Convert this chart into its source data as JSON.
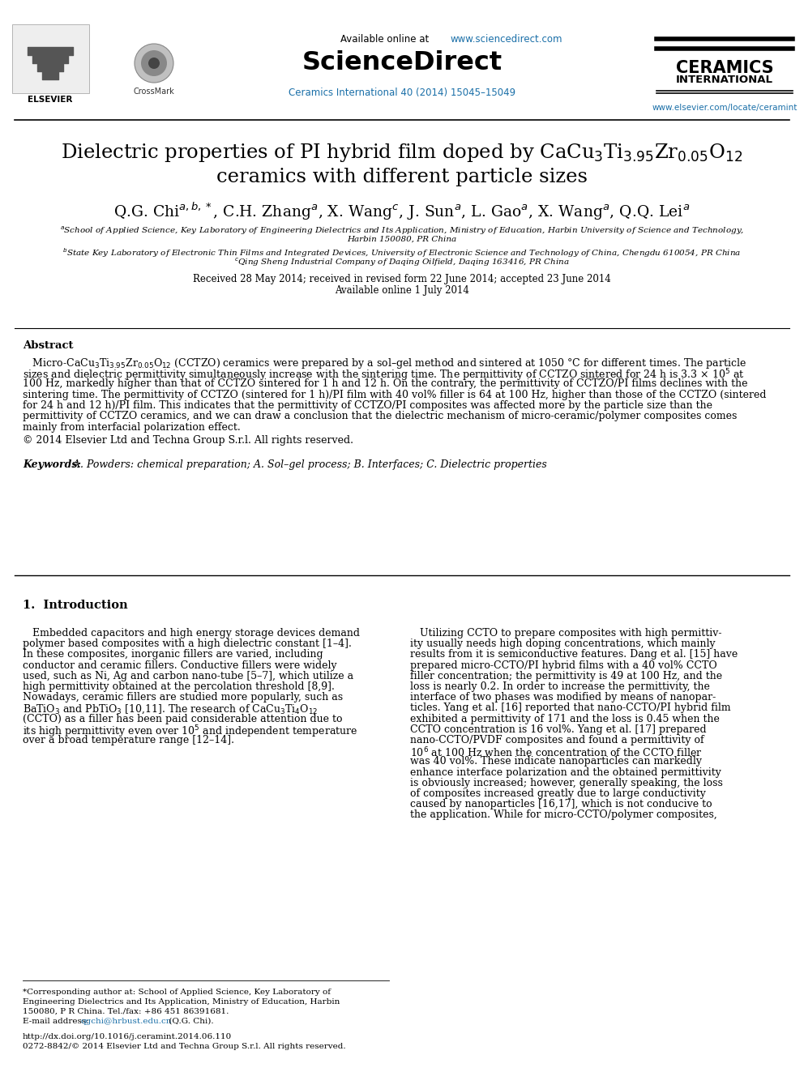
{
  "page_bg": "#ffffff",
  "header_available": "Available online at ",
  "header_url_sd": "www.sciencedirect.com",
  "header_sd_bold": "ScienceDirect",
  "header_journal": "Ceramics International 40 (2014) 15045–15049",
  "header_ceramics": "CERAMICS",
  "header_intl": "INTERNATIONAL",
  "header_elsevier": "ELSEVIER",
  "header_crossmark": "CrossMark",
  "header_url_els": "www.elsevier.com/locate/ceramint",
  "title_line1": "Dielectric properties of PI hybrid film doped by CaCu$_3$Ti$_{3.95}$Zr$_{0.05}$O$_{12}$",
  "title_line2": "ceramics with different particle sizes",
  "authors_text": "Q.G. Chi$^{a,b,*}$, C.H. Zhang$^{a}$, X. Wang$^{c}$, J. Sun$^{a}$, L. Gao$^{a}$, X. Wang$^{a}$, Q.Q. Lei$^{a}$",
  "affil_a_line1": "$^{a}$School of Applied Science, Key Laboratory of Engineering Dielectrics and Its Application, Ministry of Education, Harbin University of Science and Technology,",
  "affil_a_line2": "Harbin 150080, PR China",
  "affil_b": "$^{b}$State Key Laboratory of Electronic Thin Films and Integrated Devices, University of Electronic Science and Technology of China, Chengdu 610054, PR China",
  "affil_c": "$^{c}$Qing Sheng Industrial Company of Daqing Oilfield, Daqing 163416, PR China",
  "received": "Received 28 May 2014; received in revised form 22 June 2014; accepted 23 June 2014",
  "available_online": "Available online 1 July 2014",
  "abstract_title": "Abstract",
  "abstract_lines": [
    "   Micro-CaCu$_3$Ti$_{3.95}$Zr$_{0.05}$O$_{12}$ (CCTZO) ceramics were prepared by a sol–gel method and sintered at 1050 °C for different times. The particle",
    "sizes and dielectric permittivity simultaneously increase with the sintering time. The permittivity of CCTZO sintered for 24 h is 3.3 × 10$^5$ at",
    "100 Hz, markedly higher than that of CCTZO sintered for 1 h and 12 h. On the contrary, the permittivity of CCTZO/PI films declines with the",
    "sintering time. The permittivity of CCTZO (sintered for 1 h)/PI film with 40 vol% filler is 64 at 100 Hz, higher than those of the CCTZO (sintered",
    "for 24 h and 12 h)/PI film. This indicates that the permittivity of CCTZO/PI composites was affected more by the particle size than the",
    "permittivity of CCTZO ceramics, and we can draw a conclusion that the dielectric mechanism of micro-ceramic/polymer composites comes",
    "mainly from interfacial polarization effect."
  ],
  "copyright": "© 2014 Elsevier Ltd and Techna Group S.r.l. All rights reserved.",
  "keywords_label": "Keywords:",
  "keywords_text": " A. Powders: chemical preparation; A. Sol–gel process; B. Interfaces; C. Dielectric properties",
  "section1_title": "1.  Introduction",
  "intro_col1_lines": [
    "   Embedded capacitors and high energy storage devices demand",
    "polymer based composites with a high dielectric constant [1–4].",
    "In these composites, inorganic fillers are varied, including",
    "conductor and ceramic fillers. Conductive fillers were widely",
    "used, such as Ni, Ag and carbon nano-tube [5–7], which utilize a",
    "high permittivity obtained at the percolation threshold [8,9].",
    "Nowadays, ceramic fillers are studied more popularly, such as",
    "BaTiO$_3$ and PbTiO$_3$ [10,11]. The research of CaCu$_3$Ti$_4$O$_{12}$",
    "(CCTO) as a filler has been paid considerable attention due to",
    "its high permittivity even over 10$^5$ and independent temperature",
    "over a broad temperature range [12–14]."
  ],
  "intro_col2_lines": [
    "   Utilizing CCTO to prepare composites with high permittiv-",
    "ity usually needs high doping concentrations, which mainly",
    "results from it is semiconductive features. Dang et al. [15] have",
    "prepared micro-CCTO/PI hybrid films with a 40 vol% CCTO",
    "filler concentration; the permittivity is 49 at 100 Hz, and the",
    "loss is nearly 0.2. In order to increase the permittivity, the",
    "interface of two phases was modified by means of nanopar-",
    "ticles. Yang et al. [16] reported that nano-CCTO/PI hybrid film",
    "exhibited a permittivity of 171 and the loss is 0.45 when the",
    "CCTO concentration is 16 vol%. Yang et al. [17] prepared",
    "nano-CCTO/PVDF composites and found a permittivity of",
    "10$^6$ at 100 Hz when the concentration of the CCTO filler",
    "was 40 vol%. These indicate nanoparticles can markedly",
    "enhance interface polarization and the obtained permittivity",
    "is obviously increased; however, generally speaking, the loss",
    "of composites increased greatly due to large conductivity",
    "caused by nanoparticles [16,17], which is not conducive to",
    "the application. While for micro-CCTO/polymer composites,"
  ],
  "footer_corr1": "*Corresponding author at: School of Applied Science, Key Laboratory of",
  "footer_corr2": "Engineering Dielectrics and Its Application, Ministry of Education, Harbin",
  "footer_corr3": "150080, P R China. Tel./fax: +86 451 86391681.",
  "footer_email_label": "E-mail address: ",
  "footer_email_link": "qgchi@hrbust.edu.cn",
  "footer_email_rest": " (Q.G. Chi).",
  "footer_doi": "http://dx.doi.org/10.1016/j.ceramint.2014.06.110",
  "footer_issn": "0272-8842/© 2014 Elsevier Ltd and Techna Group S.r.l. All rights reserved.",
  "url_color": "#1a6fa8",
  "text_color": "#000000",
  "line_color": "#000000",
  "bg_color": "#ffffff"
}
